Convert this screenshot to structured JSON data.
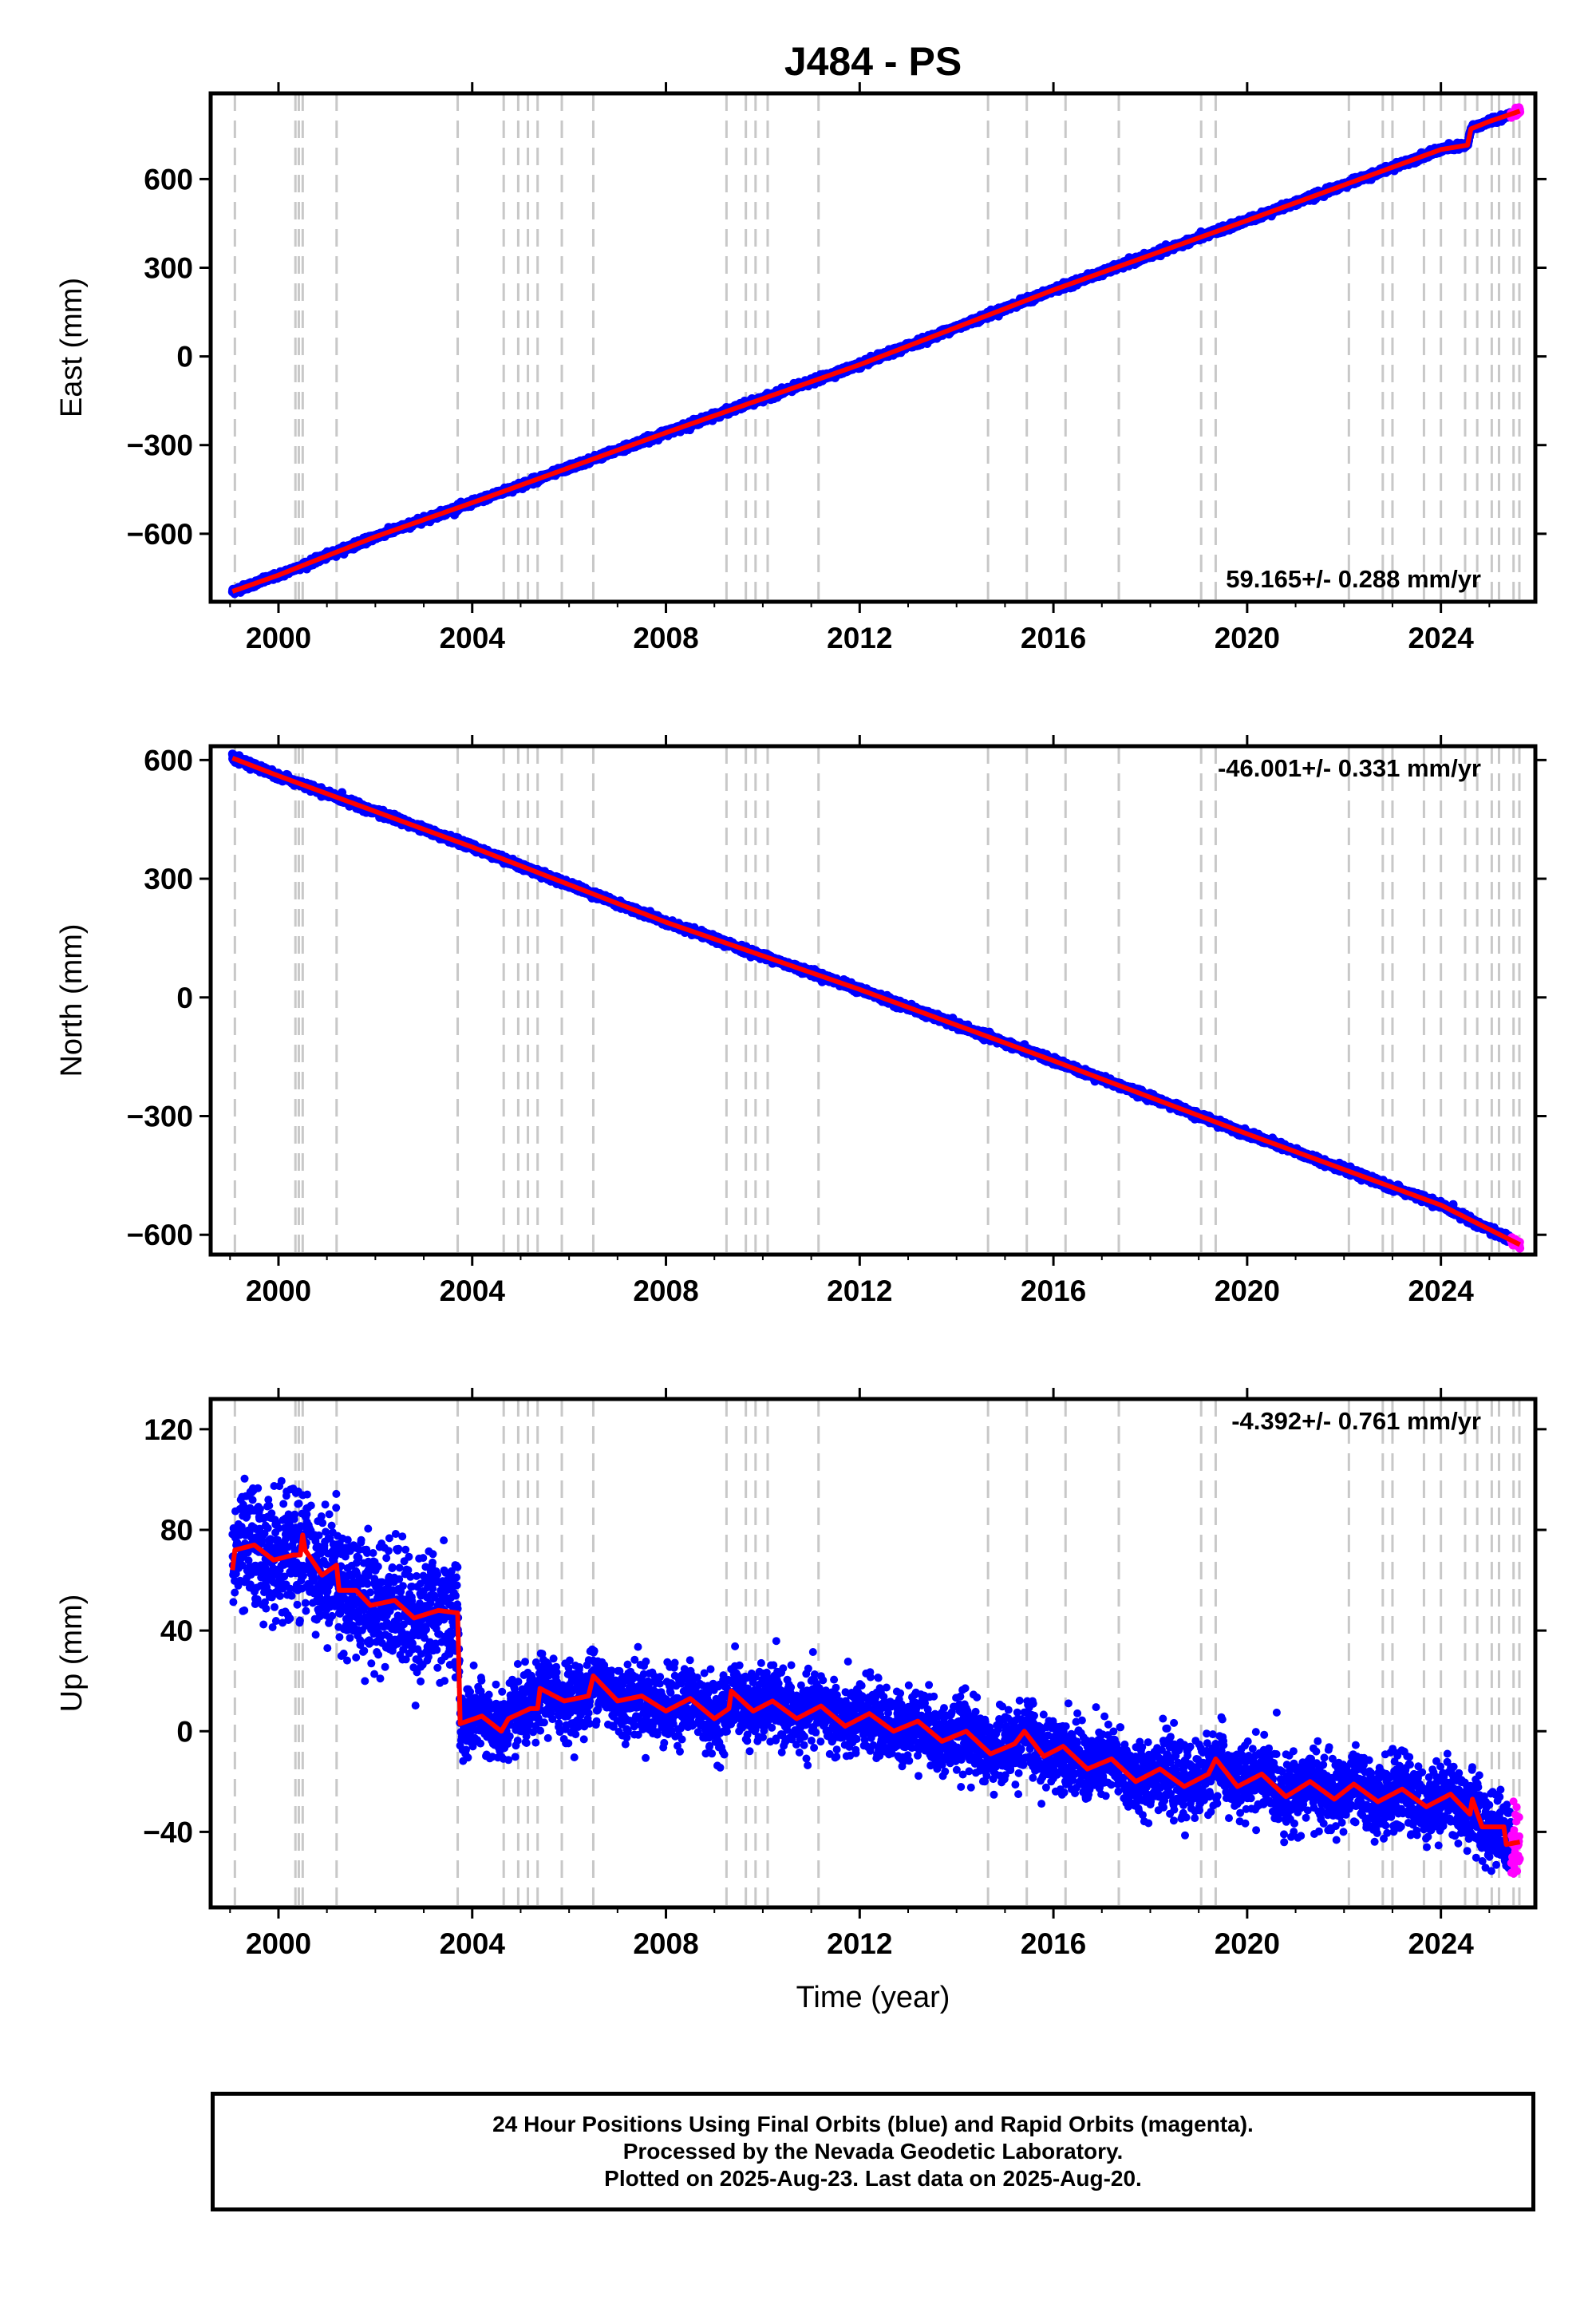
{
  "title": "J484 - PS",
  "colors": {
    "final_orbits": "#0000ff",
    "rapid_orbits": "#ff00ff",
    "model": "#ff0000",
    "event_lines": "#c8c8c8"
  },
  "chart_data": [
    {
      "type": "scatter",
      "component": "East",
      "ylabel": "East (mm)",
      "xlabel": "",
      "xlim": [
        1998.6,
        2025.95
      ],
      "ylim": [
        -830,
        890
      ],
      "x_ticks": [
        2000,
        2004,
        2008,
        2012,
        2016,
        2020,
        2024
      ],
      "y_ticks": [
        -600,
        -300,
        0,
        300,
        600
      ],
      "y_tick_labels": [
        "−600",
        "−300",
        "0",
        "300",
        "600"
      ],
      "data_start": 1999.05,
      "data_end": 2025.63,
      "rate_label": "59.165+/- 0.288 mm/yr",
      "rate_position": "bottom-right",
      "model_points": [
        [
          1999.05,
          -795
        ],
        [
          2000.0,
          -740
        ],
        [
          2002.0,
          -610
        ],
        [
          2004.0,
          -495
        ],
        [
          2008.0,
          -258
        ],
        [
          2012.0,
          -28
        ],
        [
          2016.0,
          225
        ],
        [
          2020.0,
          460
        ],
        [
          2024.0,
          700
        ],
        [
          2024.55,
          715
        ],
        [
          2024.62,
          770
        ],
        [
          2025.0,
          795
        ],
        [
          2025.63,
          830
        ]
      ],
      "scatter_noise_mm": 5,
      "rapid_start": 2025.45
    },
    {
      "type": "scatter",
      "component": "North",
      "ylabel": "North (mm)",
      "xlabel": "",
      "xlim": [
        1998.6,
        2025.95
      ],
      "ylim": [
        -650,
        635
      ],
      "x_ticks": [
        2000,
        2004,
        2008,
        2012,
        2016,
        2020,
        2024
      ],
      "y_ticks": [
        -600,
        -300,
        0,
        300,
        600
      ],
      "y_tick_labels": [
        "−600",
        "−300",
        "0",
        "300",
        "600"
      ],
      "data_start": 1999.05,
      "data_end": 2025.63,
      "rate_label": "-46.001+/- 0.331 mm/yr",
      "rate_position": "top-right",
      "model_points": [
        [
          1999.05,
          605
        ],
        [
          2000.0,
          560
        ],
        [
          2004.0,
          380
        ],
        [
          2008.0,
          190
        ],
        [
          2012.0,
          20
        ],
        [
          2016.0,
          -160
        ],
        [
          2020.0,
          -345
        ],
        [
          2024.0,
          -525
        ],
        [
          2025.63,
          -625
        ]
      ],
      "scatter_noise_mm": 4,
      "rapid_start": 2025.45
    },
    {
      "type": "scatter",
      "component": "Up",
      "ylabel": "Up (mm)",
      "xlabel": "Time (year)",
      "xlim": [
        1998.6,
        2025.95
      ],
      "ylim": [
        -70,
        132
      ],
      "x_ticks": [
        2000,
        2004,
        2008,
        2012,
        2016,
        2020,
        2024
      ],
      "y_ticks": [
        -40,
        0,
        40,
        80,
        120
      ],
      "y_tick_labels": [
        "−40",
        "0",
        "40",
        "80",
        "120"
      ],
      "data_start": 1999.05,
      "data_end": 2025.63,
      "rate_label": "-4.392+/- 0.761 mm/yr",
      "rate_position": "top-right",
      "model_points": [
        [
          1999.05,
          64
        ],
        [
          1999.1,
          72
        ],
        [
          1999.5,
          74
        ],
        [
          1999.9,
          68
        ],
        [
          2000.3,
          70
        ],
        [
          2000.45,
          70
        ],
        [
          2000.5,
          78
        ],
        [
          2000.55,
          72
        ],
        [
          2000.9,
          62
        ],
        [
          2001.2,
          66
        ],
        [
          2001.25,
          56
        ],
        [
          2001.6,
          56
        ],
        [
          2001.9,
          50
        ],
        [
          2002.4,
          52
        ],
        [
          2002.8,
          45
        ],
        [
          2003.3,
          48
        ],
        [
          2003.7,
          47
        ],
        [
          2003.75,
          3
        ],
        [
          2004.2,
          6
        ],
        [
          2004.6,
          0
        ],
        [
          2004.75,
          5
        ],
        [
          2005.2,
          9
        ],
        [
          2005.35,
          9
        ],
        [
          2005.4,
          17
        ],
        [
          2005.9,
          12
        ],
        [
          2006.4,
          14
        ],
        [
          2006.5,
          22
        ],
        [
          2007.0,
          12
        ],
        [
          2007.5,
          14
        ],
        [
          2008.0,
          8
        ],
        [
          2008.5,
          13
        ],
        [
          2009.0,
          5
        ],
        [
          2009.3,
          9
        ],
        [
          2009.35,
          16
        ],
        [
          2009.8,
          8
        ],
        [
          2010.2,
          12
        ],
        [
          2010.7,
          5
        ],
        [
          2011.2,
          10
        ],
        [
          2011.7,
          2
        ],
        [
          2012.2,
          7
        ],
        [
          2012.7,
          0
        ],
        [
          2013.2,
          4
        ],
        [
          2013.7,
          -4
        ],
        [
          2014.2,
          0
        ],
        [
          2014.7,
          -9
        ],
        [
          2015.2,
          -5
        ],
        [
          2015.4,
          0
        ],
        [
          2015.8,
          -10
        ],
        [
          2016.2,
          -6
        ],
        [
          2016.7,
          -15
        ],
        [
          2017.2,
          -11
        ],
        [
          2017.7,
          -20
        ],
        [
          2018.2,
          -15
        ],
        [
          2018.7,
          -22
        ],
        [
          2019.2,
          -17
        ],
        [
          2019.35,
          -11
        ],
        [
          2019.8,
          -22
        ],
        [
          2020.3,
          -17
        ],
        [
          2020.8,
          -26
        ],
        [
          2021.3,
          -20
        ],
        [
          2021.8,
          -27
        ],
        [
          2022.2,
          -21
        ],
        [
          2022.7,
          -28
        ],
        [
          2023.2,
          -23
        ],
        [
          2023.7,
          -30
        ],
        [
          2024.2,
          -25
        ],
        [
          2024.6,
          -33
        ],
        [
          2024.65,
          -27
        ],
        [
          2024.85,
          -38
        ],
        [
          2025.3,
          -38
        ],
        [
          2025.35,
          -45
        ],
        [
          2025.63,
          -44
        ]
      ],
      "scatter_noise_mm": 7,
      "rapid_start": 2025.45
    }
  ],
  "event_lines": [
    1999.1,
    2000.35,
    2000.42,
    2000.5,
    2001.2,
    2003.7,
    2004.65,
    2004.95,
    2005.15,
    2005.35,
    2005.85,
    2006.5,
    2009.25,
    2009.65,
    2009.85,
    2010.1,
    2011.15,
    2014.65,
    2015.45,
    2016.25,
    2017.35,
    2019.05,
    2019.35,
    2022.1,
    2022.8,
    2023.0,
    2023.65,
    2024.0,
    2024.5,
    2024.75,
    2025.05,
    2025.2,
    2025.5,
    2025.62
  ],
  "caption": {
    "line1": "24 Hour Positions Using Final Orbits (blue) and Rapid Orbits (magenta).",
    "line2": "Processed by the Nevada Geodetic Laboratory.",
    "line3": "Plotted on 2025-Aug-23. Last data on 2025-Aug-20."
  }
}
